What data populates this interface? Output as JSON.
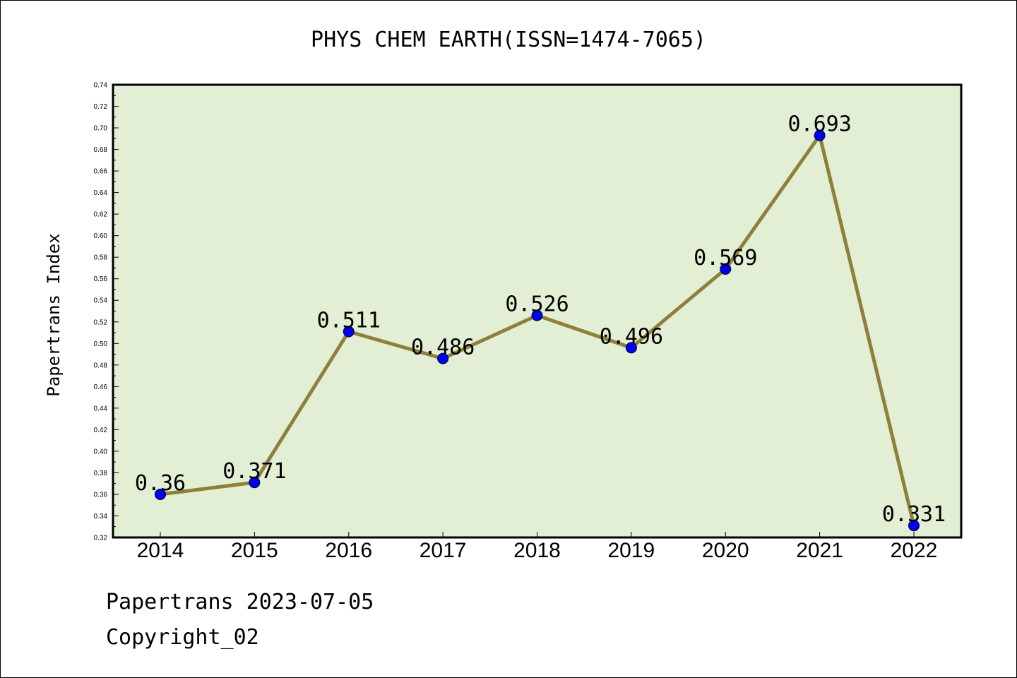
{
  "chart_data": {
    "type": "line",
    "title": "PHYS CHEM EARTH(ISSN=1474-7065)",
    "xlabel": "",
    "ylabel": "Papertrans Index",
    "categories": [
      "2014",
      "2015",
      "2016",
      "2017",
      "2018",
      "2019",
      "2020",
      "2021",
      "2022"
    ],
    "values": [
      0.36,
      0.371,
      0.511,
      0.486,
      0.526,
      0.496,
      0.569,
      0.693,
      0.331
    ],
    "data_labels": [
      "0.36",
      "0.371",
      "0.511",
      "0.486",
      "0.526",
      "0.496",
      "0.569",
      "0.693",
      "0.331"
    ],
    "ylim": [
      0.32,
      0.74
    ],
    "yticks": [
      "0.32",
      "0.34",
      "0.36",
      "0.38",
      "0.40",
      "0.42",
      "0.44",
      "0.46",
      "0.48",
      "0.50",
      "0.52",
      "0.54",
      "0.56",
      "0.58",
      "0.60",
      "0.62",
      "0.64",
      "0.66",
      "0.68",
      "0.70",
      "0.72",
      "0.74"
    ],
    "grid": false,
    "colors": {
      "plot_background": "#e2efd5",
      "line": "#8f7f3a",
      "marker": "#0000ee"
    }
  },
  "footer": {
    "line1": "Papertrans 2023-07-05",
    "line2": "Copyright_02"
  }
}
